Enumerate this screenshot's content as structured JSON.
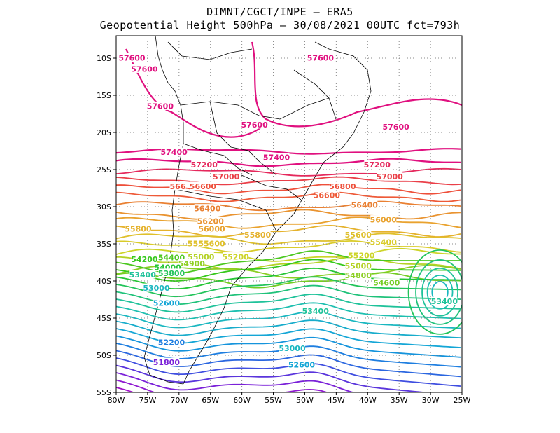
{
  "title": {
    "line1": "DIMNT/CGCT/INPE –  ERA5",
    "line2": "Geopotential Height 500hPa –  30/08/2021 00UTC fct=793h"
  },
  "axes": {
    "lon_range": [
      -80,
      -25
    ],
    "lat_range": [
      -55,
      -7
    ],
    "x_ticks": [
      "80W",
      "75W",
      "70W",
      "65W",
      "60W",
      "55W",
      "50W",
      "45W",
      "40W",
      "35W",
      "30W",
      "25W"
    ],
    "y_ticks": [
      "10S",
      "15S",
      "20S",
      "25S",
      "30S",
      "35S",
      "40S",
      "45S",
      "50S",
      "55S"
    ],
    "gridlines": "dotted"
  },
  "contour_labels": [
    {
      "text": "57600",
      "lon": -77.5,
      "lat": -10.0,
      "color": "#e0107f"
    },
    {
      "text": "57600",
      "lon": -75.5,
      "lat": -11.5,
      "color": "#e0107f"
    },
    {
      "text": "57600",
      "lon": -47.5,
      "lat": -10.0,
      "color": "#e0107f"
    },
    {
      "text": "57600",
      "lon": -73.0,
      "lat": -16.5,
      "color": "#e0107f"
    },
    {
      "text": "57600",
      "lon": -58.0,
      "lat": -19.0,
      "color": "#e0107f"
    },
    {
      "text": "57600",
      "lon": -35.5,
      "lat": -19.3,
      "color": "#e0107f"
    },
    {
      "text": "57400",
      "lon": -70.8,
      "lat": -22.7,
      "color": "#e0107f"
    },
    {
      "text": "57400",
      "lon": -54.5,
      "lat": -23.4,
      "color": "#e0107f"
    },
    {
      "text": "57200",
      "lon": -66.0,
      "lat": -24.4,
      "color": "#e5285c"
    },
    {
      "text": "57200",
      "lon": -38.5,
      "lat": -24.4,
      "color": "#e5285c"
    },
    {
      "text": "57000",
      "lon": -62.5,
      "lat": -26.0,
      "color": "#ea3f48"
    },
    {
      "text": "57000",
      "lon": -36.5,
      "lat": -26.0,
      "color": "#ea3f48"
    },
    {
      "text": "566",
      "lon": -70.2,
      "lat": -27.3,
      "color": "#ee4f3a"
    },
    {
      "text": "56600",
      "lon": -66.2,
      "lat": -27.3,
      "color": "#ee4f3a"
    },
    {
      "text": "56800",
      "lon": -44.0,
      "lat": -27.3,
      "color": "#ee4f3a"
    },
    {
      "text": "56600",
      "lon": -46.5,
      "lat": -28.5,
      "color": "#ee5a38"
    },
    {
      "text": "56400",
      "lon": -40.5,
      "lat": -29.8,
      "color": "#e98032"
    },
    {
      "text": "56400",
      "lon": -65.5,
      "lat": -30.3,
      "color": "#e98032"
    },
    {
      "text": "56200",
      "lon": -65.0,
      "lat": -32.0,
      "color": "#e99330"
    },
    {
      "text": "56000",
      "lon": -37.5,
      "lat": -31.8,
      "color": "#e9a22e"
    },
    {
      "text": "56000",
      "lon": -64.8,
      "lat": -33.0,
      "color": "#e9a22e"
    },
    {
      "text": "55800",
      "lon": -76.5,
      "lat": -33.0,
      "color": "#e5b22c"
    },
    {
      "text": "55800",
      "lon": -57.5,
      "lat": -33.8,
      "color": "#e5b22c"
    },
    {
      "text": "55600",
      "lon": -41.5,
      "lat": -33.8,
      "color": "#dfc02b"
    },
    {
      "text": "55400",
      "lon": -37.5,
      "lat": -34.8,
      "color": "#d9cb2a"
    },
    {
      "text": "55600",
      "lon": -64.8,
      "lat": -35.0,
      "color": "#dfc02b"
    },
    {
      "text": "55",
      "lon": -67.8,
      "lat": -35.0,
      "color": "#dfc02b"
    },
    {
      "text": "55200",
      "lon": -61.0,
      "lat": -36.8,
      "color": "#cdd428"
    },
    {
      "text": "55200",
      "lon": -41.0,
      "lat": -36.6,
      "color": "#cdd428"
    },
    {
      "text": "55000",
      "lon": -66.5,
      "lat": -36.8,
      "color": "#b5d226"
    },
    {
      "text": "54200",
      "lon": -75.5,
      "lat": -37.1,
      "color": "#36c81c"
    },
    {
      "text": "54400",
      "lon": -71.2,
      "lat": -36.9,
      "color": "#4cc820"
    },
    {
      "text": "54900",
      "lon": -68.0,
      "lat": -37.7,
      "color": "#90d024"
    },
    {
      "text": "55000",
      "lon": -41.5,
      "lat": -38.0,
      "color": "#b5d226"
    },
    {
      "text": "54000",
      "lon": -71.8,
      "lat": -38.2,
      "color": "#26c636"
    },
    {
      "text": "53800",
      "lon": -71.2,
      "lat": -39.0,
      "color": "#22c45a"
    },
    {
      "text": "53400",
      "lon": -75.8,
      "lat": -39.2,
      "color": "#1fc29a"
    },
    {
      "text": "54800",
      "lon": -41.5,
      "lat": -39.3,
      "color": "#8ccf24"
    },
    {
      "text": "54600",
      "lon": -37.0,
      "lat": -40.3,
      "color": "#74cd22"
    },
    {
      "text": "53000",
      "lon": -73.6,
      "lat": -41.0,
      "color": "#1ab7c0"
    },
    {
      "text": "53400",
      "lon": -27.8,
      "lat": -42.8,
      "color": "#1fc29a"
    },
    {
      "text": "52600",
      "lon": -72.0,
      "lat": -43.0,
      "color": "#14a6d6"
    },
    {
      "text": "53400",
      "lon": -48.3,
      "lat": -44.1,
      "color": "#1fc29a"
    },
    {
      "text": "52200",
      "lon": -71.2,
      "lat": -48.3,
      "color": "#1e7ee0"
    },
    {
      "text": "53000",
      "lon": -52.0,
      "lat": -49.1,
      "color": "#1ab7c0"
    },
    {
      "text": "52600",
      "lon": -50.5,
      "lat": -51.3,
      "color": "#14a6d6"
    },
    {
      "text": "51800",
      "lon": -72.0,
      "lat": -51.0,
      "color": "#7a20d8"
    }
  ]
}
